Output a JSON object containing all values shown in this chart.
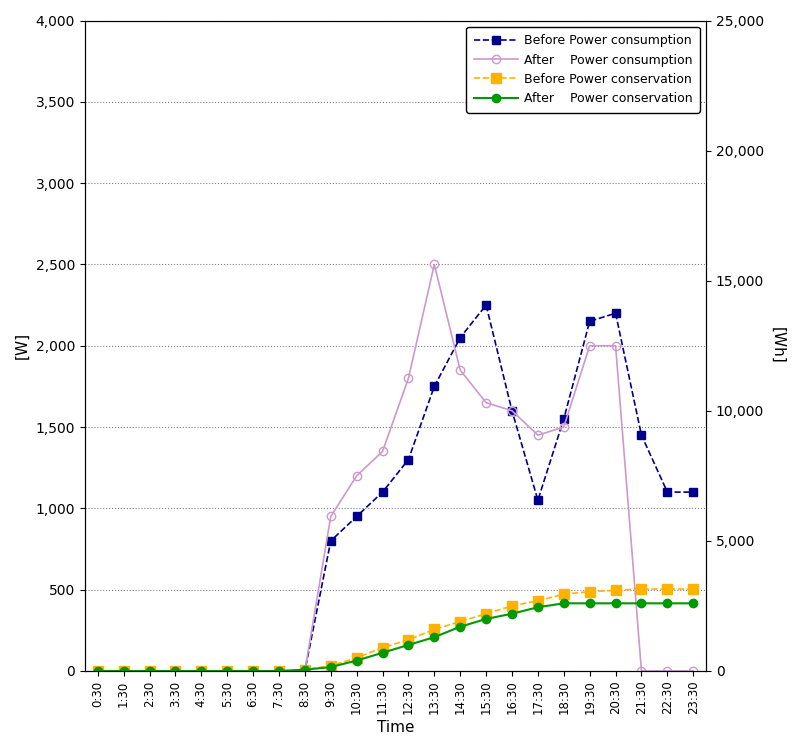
{
  "time_labels": [
    "0:30",
    "1:30",
    "2:30",
    "3:30",
    "4:30",
    "5:30",
    "6:30",
    "7:30",
    "8:30",
    "9:30",
    "10:30",
    "11:30",
    "12:30",
    "13:30",
    "14:30",
    "15:30",
    "16:30",
    "17:30",
    "18:30",
    "19:30",
    "20:30",
    "21:30",
    "22:30",
    "23:30"
  ],
  "before_consumption": [
    0,
    0,
    0,
    0,
    0,
    0,
    0,
    0,
    0,
    800,
    950,
    1100,
    1300,
    1750,
    2050,
    2250,
    1600,
    1050,
    1550,
    2150,
    2200,
    1450,
    1100,
    1100
  ],
  "after_consumption": [
    0,
    0,
    0,
    0,
    0,
    0,
    0,
    0,
    0,
    950,
    1200,
    1350,
    1800,
    2500,
    1850,
    1650,
    1600,
    1450,
    1500,
    2000,
    2000,
    0,
    0,
    0
  ],
  "before_conservation": [
    0,
    0,
    0,
    0,
    0,
    0,
    0,
    0,
    50,
    200,
    500,
    900,
    1200,
    1600,
    1900,
    2200,
    2500,
    2700,
    2950,
    3050,
    3100,
    3150,
    3150,
    3150
  ],
  "after_conservation": [
    0,
    0,
    0,
    0,
    0,
    0,
    0,
    0,
    50,
    150,
    400,
    700,
    1000,
    1300,
    1700,
    2000,
    2200,
    2450,
    2600,
    2600,
    2600,
    2600,
    2600,
    2600
  ],
  "before_cons_color": "#00008B",
  "after_cons_color": "#CC99CC",
  "before_conserv_color": "#FFB300",
  "after_conserv_color": "#009900",
  "ylabel_left": "[W]",
  "ylabel_right": "[Wh]",
  "xlabel": "Time",
  "ylim_left": [
    0,
    4000
  ],
  "ylim_right": [
    0,
    25000
  ],
  "yticks_left": [
    0,
    500,
    1000,
    1500,
    2000,
    2500,
    3000,
    3500,
    4000
  ],
  "yticks_right": [
    0,
    5000,
    10000,
    15000,
    20000,
    25000
  ],
  "legend_labels": [
    "Before Power consumption",
    "After    Power consumption",
    "Before Power conservation",
    "After    Power conservation"
  ],
  "fig_bg": "#ffffff",
  "plot_bg": "#ffffff"
}
